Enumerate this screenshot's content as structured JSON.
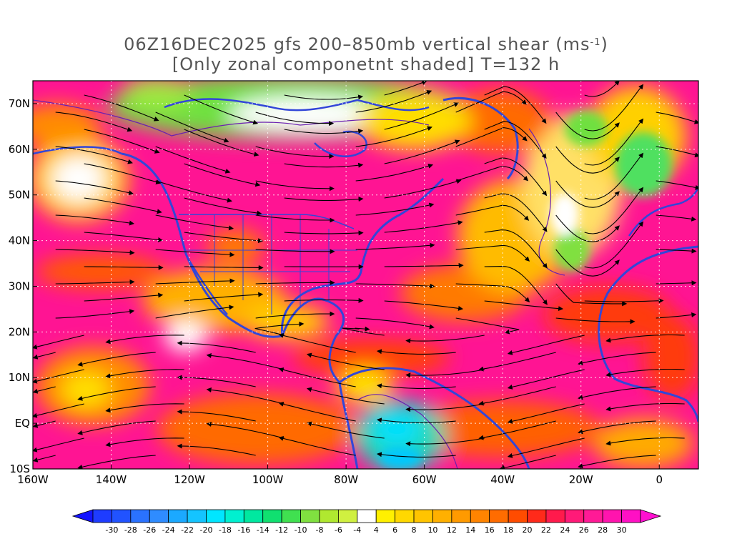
{
  "title": {
    "line1_prefix": "06Z16DEC2025 gfs 200–850mb vertical shear (ms",
    "line1_sup": "-1",
    "line1_suffix": ")",
    "line2": "[Only zonal componetnt shaded] T=132 h"
  },
  "axes": {
    "y_labels": [
      "70N",
      "60N",
      "50N",
      "40N",
      "30N",
      "20N",
      "10N",
      "EQ",
      "10S"
    ],
    "x_labels": [
      "160W",
      "140W",
      "120W",
      "100W",
      "80W",
      "60W",
      "40W",
      "20W",
      "0"
    ],
    "lon_range": [
      -160,
      10
    ],
    "lat_range": [
      -10,
      75
    ]
  },
  "colorbar": {
    "labels": [
      "-30",
      "-28",
      "-26",
      "-24",
      "-22",
      "-20",
      "-18",
      "-16",
      "-14",
      "-12",
      "-10",
      "-8",
      "-6",
      "-4",
      "4",
      "6",
      "8",
      "10",
      "12",
      "14",
      "16",
      "18",
      "20",
      "22",
      "24",
      "26",
      "28",
      "30"
    ],
    "colors": [
      "#1e3cff",
      "#2153ff",
      "#2a72ff",
      "#2f8cff",
      "#1ba9ff",
      "#14c4ff",
      "#00e6ff",
      "#00f0d0",
      "#00e8a0",
      "#10e070",
      "#40e050",
      "#80e040",
      "#b0e830",
      "#d0f040",
      "#ffffff",
      "#fff000",
      "#ffd800",
      "#ffc400",
      "#ffb000",
      "#ff9a00",
      "#ff8400",
      "#ff6c00",
      "#ff4c00",
      "#ff2a1a",
      "#ff1a4c",
      "#ff1a78",
      "#ff1a96",
      "#ff14ae",
      "#ff10c4"
    ],
    "low_color": "#1414ff",
    "high_color": "#ff10d0"
  },
  "colors": {
    "jet_max": "#ff14b4",
    "coast": "#3246d8",
    "border": "#6a1fb0"
  }
}
